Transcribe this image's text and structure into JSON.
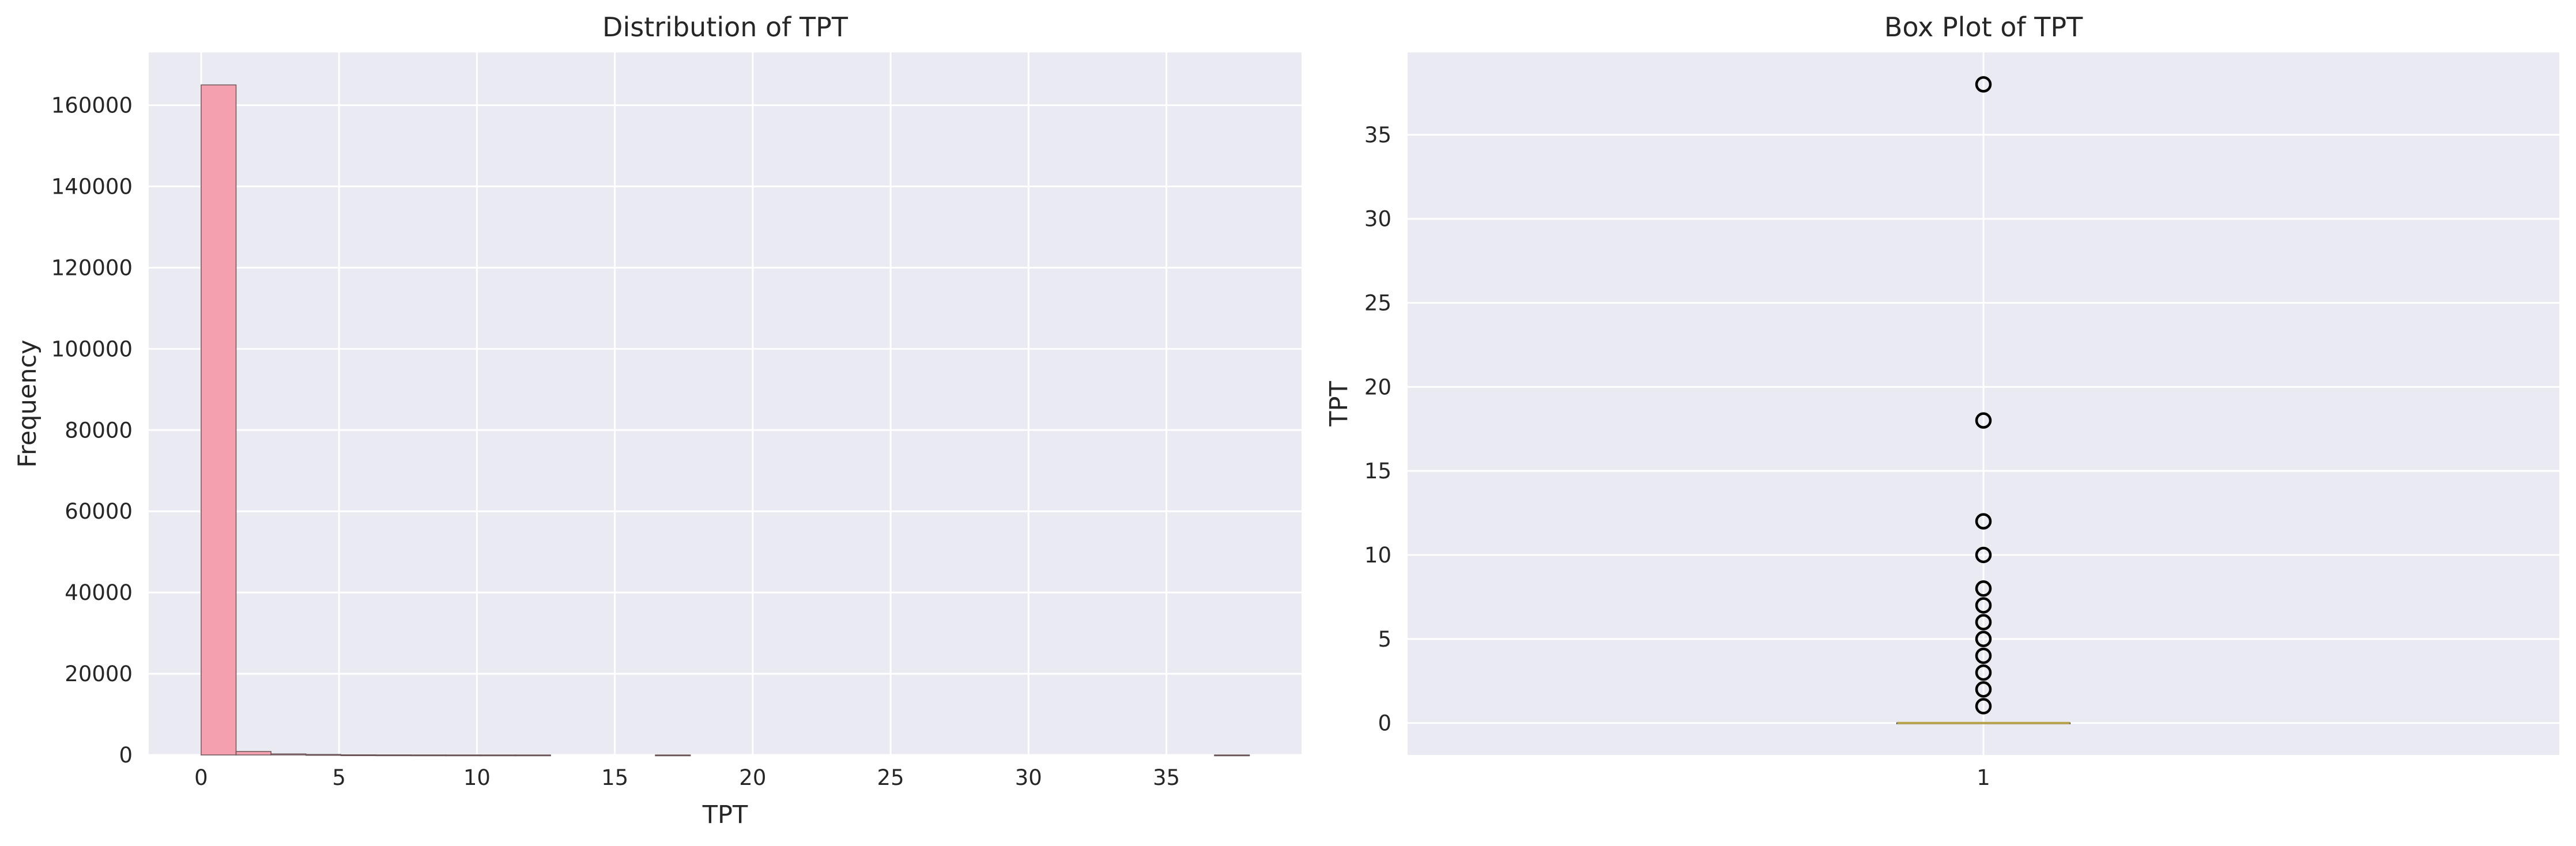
{
  "colors": {
    "axes_bg": "#EAEAF2",
    "grid": "#FFFFFF",
    "hist_fill": "#F4A0AE",
    "hist_edge": "#6b5558",
    "box_median": "#B5A24A",
    "outlier_edge": "#000000",
    "text": "#262626"
  },
  "chart_data": [
    {
      "type": "bar",
      "subtype": "histogram",
      "title": "Distribution of TPT",
      "xlabel": "TPT",
      "ylabel": "Frequency",
      "xlim": [
        -1.9,
        39.9
      ],
      "ylim": [
        0,
        173000
      ],
      "xticks": [
        0,
        5,
        10,
        15,
        20,
        25,
        30,
        35
      ],
      "yticks": [
        0,
        20000,
        40000,
        60000,
        80000,
        100000,
        120000,
        140000,
        160000
      ],
      "bin_width": 1.267,
      "bin_edges_start": 0,
      "values": [
        165000,
        850,
        250,
        120,
        40,
        20,
        10,
        5,
        3,
        2,
        0,
        0,
        0,
        1,
        0,
        0,
        0,
        0,
        0,
        0,
        0,
        0,
        0,
        0,
        0,
        0,
        0,
        0,
        0,
        1
      ],
      "grid": true
    },
    {
      "type": "box",
      "title": "Box Plot of TPT",
      "xlabel": "",
      "ylabel": "TPT",
      "ylim": [
        -1.9,
        39.9
      ],
      "yticks": [
        0,
        5,
        10,
        15,
        20,
        25,
        30,
        35
      ],
      "xticks": [
        "1"
      ],
      "box": {
        "q1": 0,
        "median": 0,
        "q3": 0,
        "whisker_low": 0,
        "whisker_high": 0
      },
      "outliers": [
        1,
        2,
        3,
        4,
        5,
        6,
        7,
        8,
        10,
        12,
        18,
        38
      ],
      "grid": true
    }
  ]
}
